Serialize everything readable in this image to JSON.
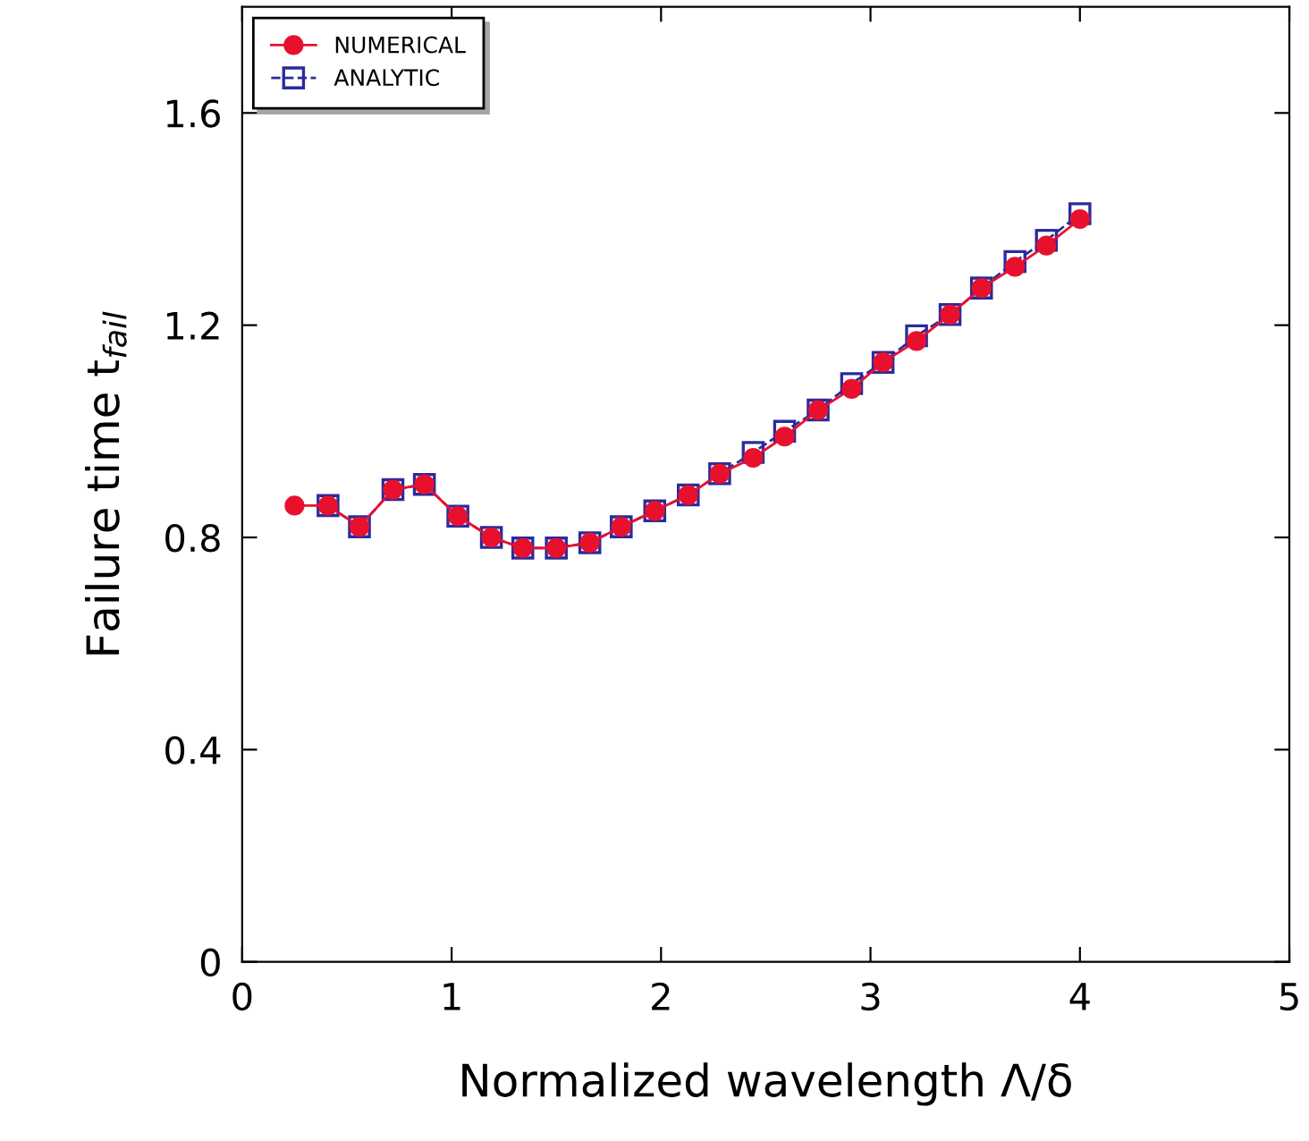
{
  "chart_data": {
    "type": "line",
    "xlabel": "Normalized wavelength Λ/δ",
    "ylabel": "Failure time t$_{fail}$",
    "xlim": [
      0,
      5
    ],
    "xticks": [
      0,
      1,
      2,
      3,
      4,
      5
    ],
    "ylim": [
      0,
      1.8
    ],
    "yticks": [
      0,
      0.4,
      0.8,
      1.2,
      1.6
    ],
    "grid": false,
    "legend": "top left",
    "x": [
      0.25,
      0.41,
      0.56,
      0.72,
      0.87,
      1.03,
      1.19,
      1.34,
      1.5,
      1.66,
      1.81,
      1.97,
      2.13,
      2.28,
      2.44,
      2.59,
      2.75,
      2.91,
      3.06,
      3.22,
      3.38,
      3.53,
      3.69,
      3.84,
      4.0
    ],
    "series": [
      {
        "name": "NUMERICAL",
        "color": "#e8112d",
        "marker": "circle",
        "line_style": "solid",
        "values": [
          0.86,
          0.86,
          0.82,
          0.89,
          0.9,
          0.84,
          0.8,
          0.78,
          0.78,
          0.79,
          0.82,
          0.85,
          0.88,
          0.92,
          0.95,
          0.99,
          1.04,
          1.08,
          1.13,
          1.17,
          1.22,
          1.27,
          1.31,
          1.35,
          1.4
        ]
      },
      {
        "name": "ANALYTIC",
        "color": "#2b2b9c",
        "marker": "square",
        "line_style": "dashed",
        "values": [
          null,
          0.86,
          0.82,
          0.89,
          0.9,
          0.84,
          0.8,
          0.78,
          0.78,
          0.79,
          0.82,
          0.85,
          0.88,
          0.92,
          0.96,
          1.0,
          1.04,
          1.09,
          1.13,
          1.18,
          1.22,
          1.27,
          1.32,
          1.36,
          1.41
        ]
      }
    ]
  }
}
